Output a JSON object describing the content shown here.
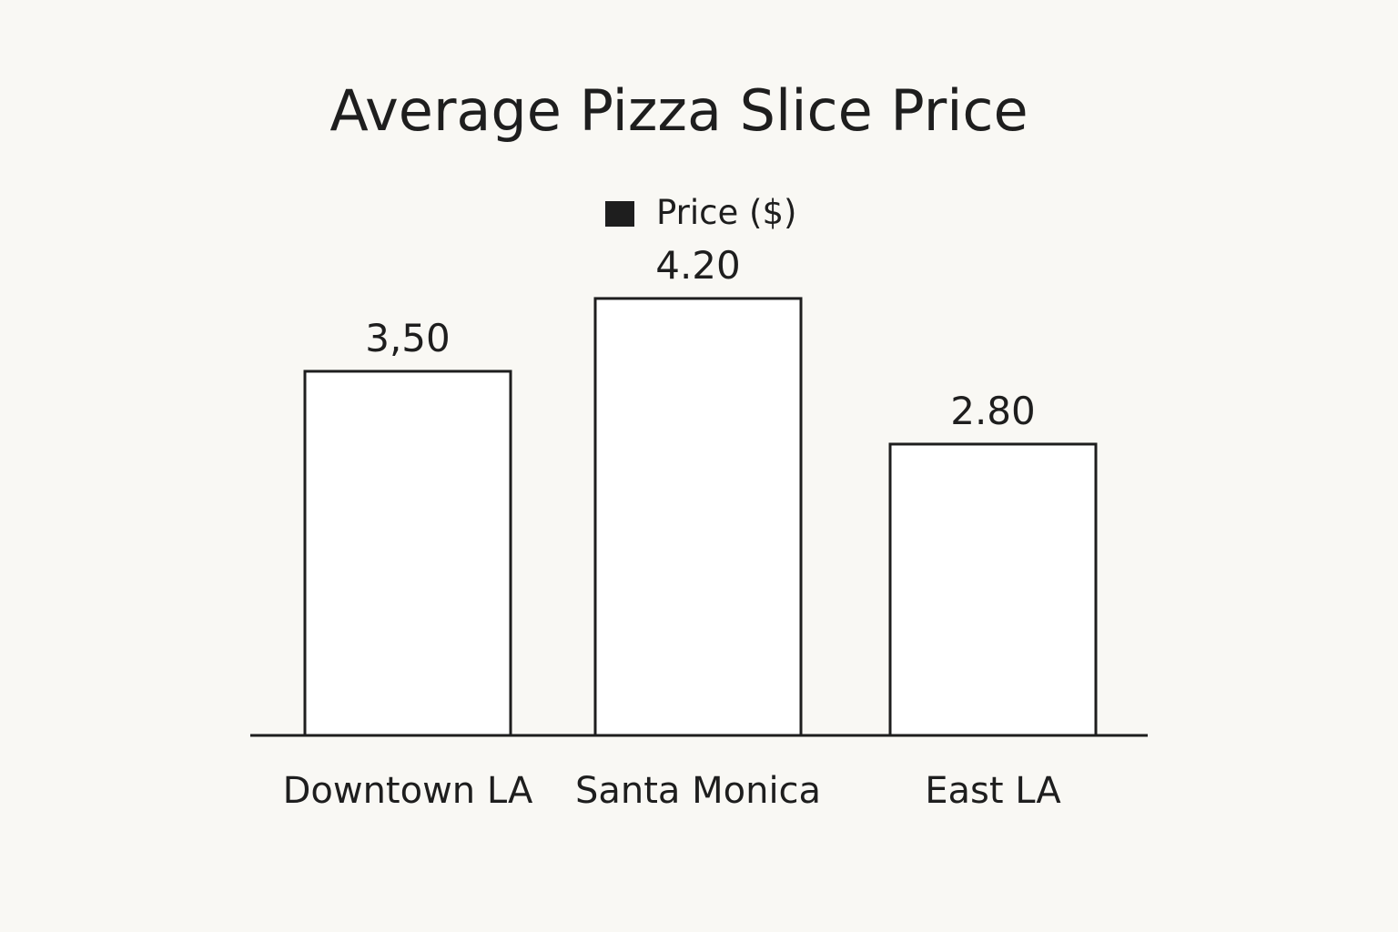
{
  "chart_data": {
    "type": "bar",
    "title": "Average Pizza Slice Price",
    "categories": [
      "Downtown LA",
      "Santa Monica",
      "East LA"
    ],
    "series": [
      {
        "name": "Price ($)",
        "values": [
          3.5,
          4.2,
          2.8
        ],
        "value_labels": [
          "3,50",
          "4.20",
          "2.80"
        ]
      }
    ],
    "legend_position": "top-center",
    "grid": false,
    "ylim": [
      0,
      5.5
    ],
    "colors": {
      "bar_fill": "#ffffff",
      "bar_stroke": "#1e1e1e",
      "legend_swatch": "#1e1e1e",
      "background": "#f9f8f4"
    }
  }
}
